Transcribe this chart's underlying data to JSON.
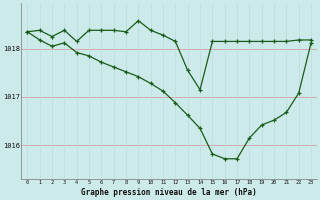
{
  "title": "Graphe pression niveau de la mer (hPa)",
  "bg_color": "#cceaea",
  "line_color": "#1a5c1a",
  "grid_h_color": "#d4aaaa",
  "grid_v_color": "#bbdddd",
  "xlim": [
    -0.5,
    23.5
  ],
  "ylim": [
    1015.3,
    1018.95
  ],
  "yticks": [
    1016,
    1017,
    1018
  ],
  "xticks": [
    0,
    1,
    2,
    3,
    4,
    5,
    6,
    7,
    8,
    9,
    10,
    11,
    12,
    13,
    14,
    15,
    16,
    17,
    18,
    19,
    20,
    21,
    22,
    23
  ],
  "line1_x": [
    0,
    1,
    2,
    3,
    4,
    5,
    6,
    7,
    8,
    9,
    10,
    11,
    12,
    13,
    14,
    15,
    16,
    17,
    18,
    19,
    20,
    21,
    22,
    23
  ],
  "line1_y": [
    1018.35,
    1018.38,
    1018.25,
    1018.38,
    1018.15,
    1018.38,
    1018.38,
    1018.38,
    1018.35,
    1018.58,
    1018.38,
    1018.28,
    1018.15,
    1017.55,
    1017.15,
    1018.15,
    1018.15,
    1018.15,
    1018.15,
    1018.15,
    1018.15,
    1018.15,
    1018.18,
    1018.18
  ],
  "line2_x": [
    0,
    1,
    2,
    3,
    4,
    5,
    6,
    7,
    8,
    9,
    10,
    11,
    12,
    13,
    14,
    15,
    16,
    17,
    18,
    19,
    20,
    21,
    22,
    23
  ],
  "line2_y": [
    1018.35,
    1018.18,
    1018.05,
    1018.12,
    1017.92,
    1017.85,
    1017.72,
    1017.62,
    1017.52,
    1017.42,
    1017.28,
    1017.12,
    1016.88,
    1016.62,
    1016.35,
    1015.82,
    1015.72,
    1015.72,
    1016.15,
    1016.42,
    1016.52,
    1016.68,
    1017.08,
    1018.12
  ]
}
